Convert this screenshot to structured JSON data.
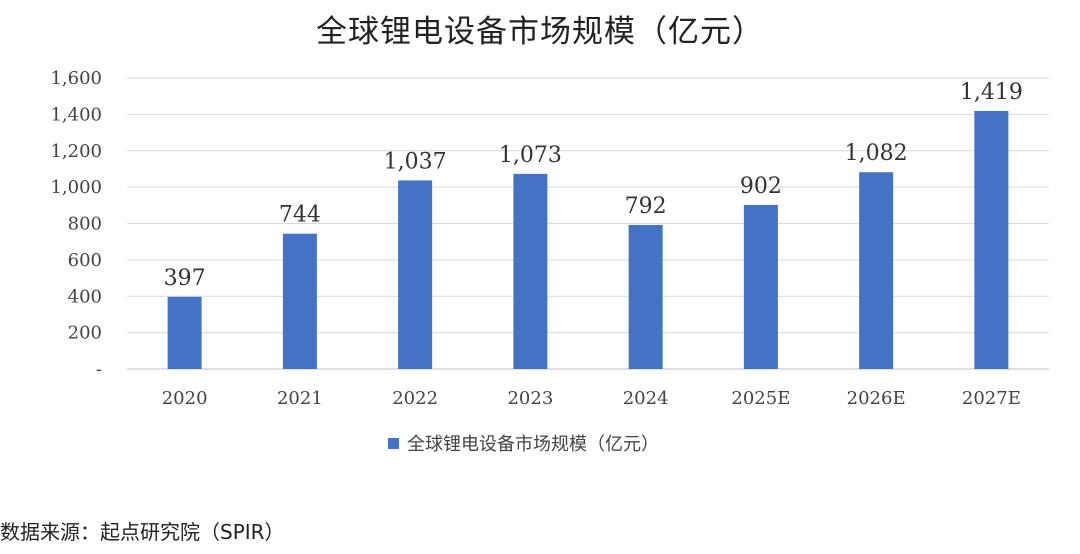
{
  "title": "全球锂电设备市场规模（亿元）",
  "source": "数据来源：起点研究院（SPIR）",
  "colors": {
    "bar": "#4472C4",
    "grid": "#D9D9D9",
    "axis": "#BFBFBF"
  },
  "chart_data": {
    "type": "bar",
    "title": "全球锂电设备市场规模（亿元）",
    "categories": [
      "2020",
      "2021",
      "2022",
      "2023",
      "2024",
      "2025E",
      "2026E",
      "2027E"
    ],
    "series": [
      {
        "name": "全球锂电设备市场规模（亿元）",
        "values": [
          397,
          744,
          1037,
          1073,
          792,
          902,
          1082,
          1419
        ],
        "labels": [
          "397",
          "744",
          "1,037",
          "1,073",
          "792",
          "902",
          "1,082",
          "1,419"
        ]
      }
    ],
    "ylim": [
      0,
      1600
    ],
    "yticks": [
      0,
      200,
      400,
      600,
      800,
      1000,
      1200,
      1400,
      1600
    ],
    "ytick_labels": [
      "-",
      "200",
      "400",
      "600",
      "800",
      "1,000",
      "1,200",
      "1,400",
      "1,600"
    ],
    "grid": true,
    "legend": "bottom"
  }
}
